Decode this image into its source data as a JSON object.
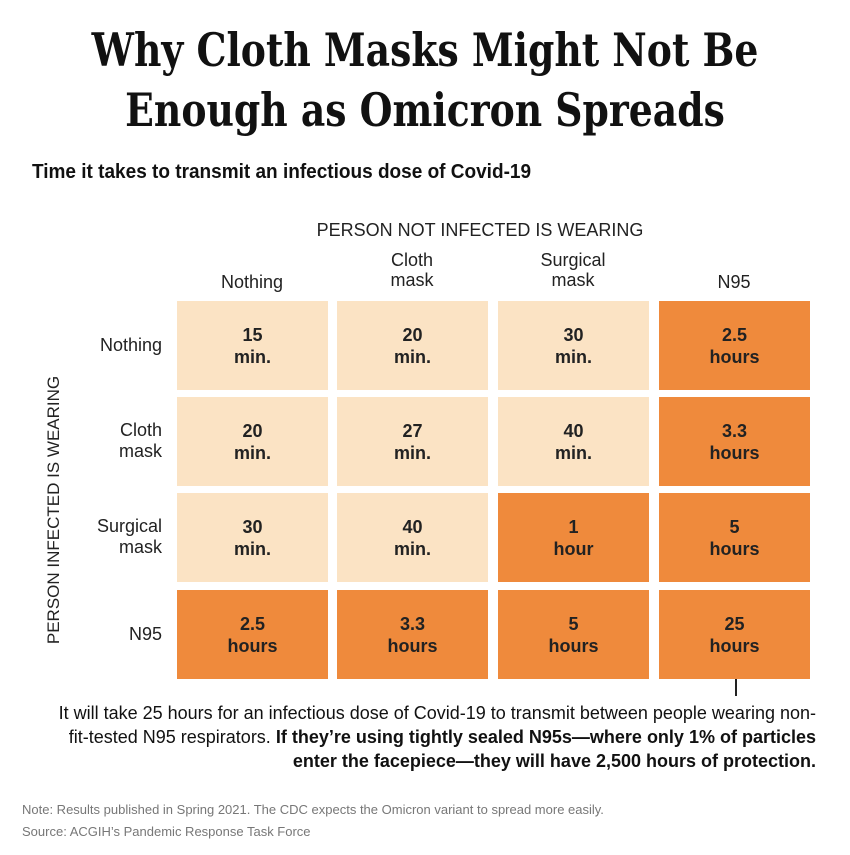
{
  "title_line1": "Why Cloth Masks Might Not Be",
  "title_line2": "Enough as Omicron Spreads",
  "subtitle": "Time it takes to transmit an infectious dose of Covid-19",
  "caption": {
    "part1": "It will take 25 hours for an infectious dose of Covid-19 to transmit between people wearing non-fit-tested N95 respirators.",
    "part2": "If they’re using tightly sealed N95s—where only 1% of particles enter the facepiece—they will have 2,500 hours of protection."
  },
  "note": "Note: Results published in Spring 2021. The CDC expects the Omicron variant to spread more easily.",
  "source": "Source: ACGIH’s Pandemic Response Task Force",
  "colors": {
    "light": "#fbe3c4",
    "dark": "#ef8a3c"
  },
  "chart_data": {
    "type": "heatmap",
    "title": "Why Cloth Masks Might Not Be Enough as Omicron Spreads",
    "subtitle": "Time it takes to transmit an infectious dose of Covid-19",
    "xlabel": "PERSON NOT INFECTED IS WEARING",
    "ylabel": "PERSON INFECTED IS WEARING",
    "columns": [
      "Nothing",
      "Cloth\nmask",
      "Surgical\nmask",
      "N95"
    ],
    "rows": [
      "Nothing",
      "Cloth\nmask",
      "Surgical\nmask",
      "N95"
    ],
    "cells": [
      [
        "15\nmin.",
        "20\nmin.",
        "30\nmin.",
        "2.5\nhours"
      ],
      [
        "20\nmin.",
        "27\nmin.",
        "40\nmin.",
        "3.3\nhours"
      ],
      [
        "30\nmin.",
        "40\nmin.",
        "1\nhour",
        "5\nhours"
      ],
      [
        "2.5\nhours",
        "3.3\nhours",
        "5\nhours",
        "25\nhours"
      ]
    ],
    "values_minutes": [
      [
        15,
        20,
        30,
        150
      ],
      [
        20,
        27,
        40,
        198
      ],
      [
        30,
        40,
        60,
        300
      ],
      [
        150,
        198,
        300,
        1500
      ]
    ],
    "dark_threshold_minutes": 60
  }
}
